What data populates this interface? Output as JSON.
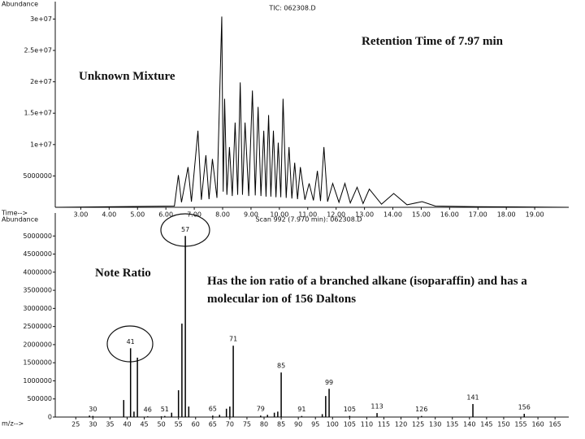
{
  "chart_data": [
    {
      "type": "line",
      "title": "TIC: 062308.D",
      "ylabel": "Abundance",
      "xlabel": "Time-->",
      "annotations": [
        "Retention Time of 7.97 min",
        "Unknown Mixture"
      ],
      "color": "#000000",
      "x": [
        2.1,
        6.3,
        6.44,
        6.55,
        6.78,
        6.9,
        7.13,
        7.25,
        7.41,
        7.52,
        7.64,
        7.8,
        7.97,
        8.02,
        8.07,
        8.15,
        8.24,
        8.34,
        8.44,
        8.53,
        8.62,
        8.7,
        8.79,
        8.92,
        9.05,
        9.15,
        9.25,
        9.35,
        9.45,
        9.53,
        9.62,
        9.7,
        9.79,
        9.88,
        9.96,
        10.05,
        10.13,
        10.24,
        10.34,
        10.44,
        10.54,
        10.64,
        10.74,
        10.9,
        11.05,
        11.2,
        11.34,
        11.45,
        11.57,
        11.7,
        11.88,
        12.1,
        12.31,
        12.5,
        12.74,
        12.95,
        13.17,
        13.6,
        14.03,
        14.5,
        15.03,
        15.5,
        17,
        20.2
      ],
      "values": [
        0,
        200000,
        5130000,
        800000,
        6400000,
        900000,
        12200000,
        1200000,
        8300000,
        1300000,
        7700000,
        1500000,
        30400000,
        2500000,
        17300000,
        2000000,
        9600000,
        1800000,
        13500000,
        2000000,
        19900000,
        2000000,
        13500000,
        1800000,
        18600000,
        1900000,
        16000000,
        1800000,
        12200000,
        1700000,
        14700000,
        1700000,
        12200000,
        1600000,
        10300000,
        1600000,
        17300000,
        1500000,
        9600000,
        1400000,
        7100000,
        1300000,
        6400000,
        1200000,
        3800000,
        1100000,
        5800000,
        1000000,
        9600000,
        900000,
        3800000,
        800000,
        3800000,
        700000,
        3200000,
        600000,
        2900000,
        500000,
        2200000,
        400000,
        900000,
        200000,
        100000,
        0
      ],
      "xlim": [
        2.1,
        20.2
      ],
      "ylim": [
        0,
        32000000
      ],
      "xticks": [
        {
          "value": 3,
          "label": "3.00"
        },
        {
          "value": 4,
          "label": "4.00"
        },
        {
          "value": 5,
          "label": "5.00"
        },
        {
          "value": 6,
          "label": "6.00"
        },
        {
          "value": 7,
          "label": "7.00"
        },
        {
          "value": 8,
          "label": "8.00"
        },
        {
          "value": 9,
          "label": "9.00"
        },
        {
          "value": 10,
          "label": "10.00"
        },
        {
          "value": 11,
          "label": "11.00"
        },
        {
          "value": 12,
          "label": "12.00"
        },
        {
          "value": 13,
          "label": "13.00"
        },
        {
          "value": 14,
          "label": "14.00"
        },
        {
          "value": 15,
          "label": "15.00"
        },
        {
          "value": 16,
          "label": "16.00"
        },
        {
          "value": 17,
          "label": "17.00"
        },
        {
          "value": 18,
          "label": "18.00"
        },
        {
          "value": 19,
          "label": "19.00"
        }
      ],
      "yticks": [
        5000000,
        {
          "value": 10000000,
          "label": "1e+07"
        },
        {
          "value": 15000000,
          "label": "1.5e+07"
        },
        {
          "value": 20000000,
          "label": "2e+07"
        },
        {
          "value": 25000000,
          "label": "2.5e+07"
        },
        {
          "value": 30000000,
          "label": "3e+07"
        }
      ]
    },
    {
      "type": "bar",
      "title": "Scan 992 (7.970 min): 062308.D",
      "ylabel": "Abundance",
      "xlabel": "m/z-->",
      "annotations": [
        "Note Ratio",
        "Has the ion ratio of a branched alkane (isoparaffin) and has a molecular ion of 156 Daltons"
      ],
      "color": "#000000",
      "x": [
        29,
        30,
        39,
        41,
        42,
        43,
        46,
        50,
        51,
        53,
        55,
        56,
        57,
        58,
        65,
        67,
        69,
        70,
        71,
        79,
        81,
        83,
        84,
        85,
        91,
        97,
        98,
        99,
        105,
        113,
        126,
        141,
        156
      ],
      "values": [
        40000,
        30000,
        470000,
        1900000,
        150000,
        1640000,
        20000,
        20000,
        30000,
        120000,
        740000,
        2580000,
        5000000,
        290000,
        40000,
        60000,
        230000,
        290000,
        1970000,
        40000,
        60000,
        120000,
        150000,
        1230000,
        30000,
        80000,
        580000,
        780000,
        30000,
        110000,
        30000,
        360000,
        90000
      ],
      "peak_labels": [
        30,
        41,
        46,
        51,
        57,
        65,
        71,
        79,
        85,
        91,
        99,
        105,
        113,
        126,
        141,
        156
      ],
      "xlim": [
        19,
        169
      ],
      "ylim": [
        0,
        5500000
      ],
      "xticks": [
        25,
        30,
        35,
        40,
        45,
        50,
        55,
        60,
        65,
        70,
        75,
        80,
        85,
        90,
        95,
        100,
        105,
        110,
        115,
        120,
        125,
        130,
        135,
        140,
        145,
        150,
        155,
        160,
        165
      ],
      "yticks": [
        0,
        500000,
        1000000,
        1500000,
        2000000,
        2500000,
        3000000,
        3500000,
        4000000,
        4500000,
        5000000
      ]
    }
  ]
}
